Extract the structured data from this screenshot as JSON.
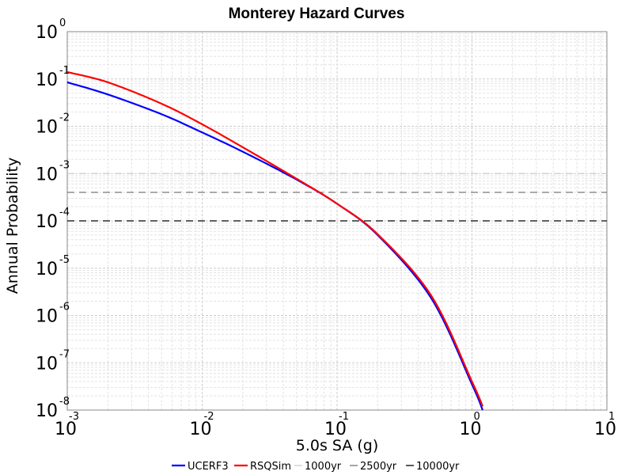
{
  "chart_data": {
    "type": "line",
    "title": "Monterey Hazard Curves",
    "xlabel": "5.0s SA (g)",
    "ylabel": "Annual Probability",
    "x_scale": "log",
    "y_scale": "log",
    "xlim": [
      0.001,
      10
    ],
    "ylim": [
      1e-08,
      1
    ],
    "grid": true,
    "legend_position": "bottom",
    "x_ticks": [
      {
        "base": "10",
        "exp": "-3"
      },
      {
        "base": "10",
        "exp": "-2"
      },
      {
        "base": "10",
        "exp": "-1"
      },
      {
        "base": "10",
        "exp": "0"
      },
      {
        "base": "10",
        "exp": "1"
      }
    ],
    "y_ticks": [
      {
        "base": "10",
        "exp": "0"
      },
      {
        "base": "10",
        "exp": "-1"
      },
      {
        "base": "10",
        "exp": "-2"
      },
      {
        "base": "10",
        "exp": "-3"
      },
      {
        "base": "10",
        "exp": "-4"
      },
      {
        "base": "10",
        "exp": "-5"
      },
      {
        "base": "10",
        "exp": "-6"
      },
      {
        "base": "10",
        "exp": "-7"
      },
      {
        "base": "10",
        "exp": "-8"
      }
    ],
    "series": [
      {
        "name": "UCERF3",
        "color": "#0000ff",
        "x": [
          0.001,
          0.002,
          0.005,
          0.01,
          0.02,
          0.05,
          0.1,
          0.2,
          0.5,
          1.0,
          1.2
        ],
        "y": [
          0.085,
          0.047,
          0.018,
          0.0074,
          0.0029,
          0.00075,
          0.00023,
          5e-05,
          2.3e-06,
          3.5e-08,
          1e-08
        ]
      },
      {
        "name": "RSQSim",
        "color": "#ff0000",
        "x": [
          0.001,
          0.002,
          0.005,
          0.01,
          0.02,
          0.05,
          0.1,
          0.2,
          0.5,
          1.0,
          1.2
        ],
        "y": [
          0.14,
          0.085,
          0.03,
          0.011,
          0.0036,
          0.00078,
          0.00023,
          5.2e-05,
          2.6e-06,
          4e-08,
          1.2e-08
        ]
      }
    ],
    "reference_lines": [
      {
        "name": "1000yr",
        "y": 0.001,
        "color": "#cccccc"
      },
      {
        "name": "2500yr",
        "y": 0.0004,
        "color": "#777777"
      },
      {
        "name": "10000yr",
        "y": 0.0001,
        "color": "#000000"
      }
    ]
  }
}
